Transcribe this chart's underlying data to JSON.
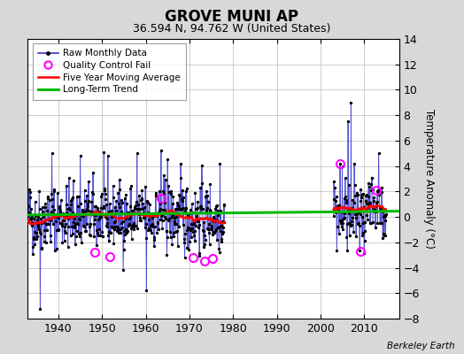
{
  "title": "GROVE MUNI AP",
  "subtitle": "36.594 N, 94.762 W (United States)",
  "ylabel": "Temperature Anomaly (°C)",
  "attribution": "Berkeley Earth",
  "xlim": [
    1933,
    2018
  ],
  "ylim": [
    -8,
    14
  ],
  "yticks": [
    -8,
    -6,
    -4,
    -2,
    0,
    2,
    4,
    6,
    8,
    10,
    12,
    14
  ],
  "xticks": [
    1940,
    1950,
    1960,
    1970,
    1980,
    1990,
    2000,
    2010
  ],
  "data_start_year": 1933.0,
  "data_end_year": 1978.0,
  "data_start_year2": 2003.0,
  "data_end_year2": 2015.0,
  "raw_color": "#3333cc",
  "ma_color": "#ff0000",
  "trend_color": "#00bb00",
  "qc_color": "#ff00ff",
  "background_color": "#d8d8d8",
  "plot_bg_color": "#ffffff",
  "seed": 42,
  "noise_scale": 1.8,
  "qc_x": [
    1948.3,
    1951.8,
    1963.5,
    1970.8,
    1973.5,
    1975.2,
    2004.5,
    2009.2,
    2012.8
  ],
  "qc_y": [
    -2.8,
    -3.1,
    1.5,
    -3.2,
    -3.5,
    -3.3,
    4.2,
    -2.7,
    2.1
  ]
}
